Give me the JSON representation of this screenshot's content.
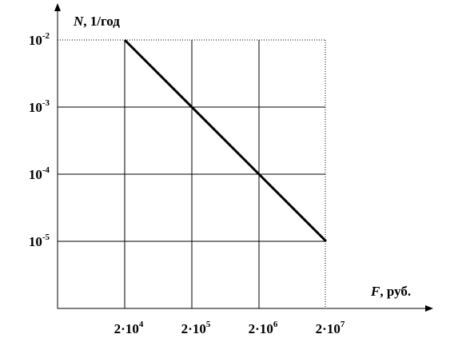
{
  "chart_data": {
    "type": "line",
    "xscale": "log",
    "yscale": "log",
    "xlabel_var": "F",
    "xlabel_unit": ",  руб.",
    "ylabel_var": "N",
    "ylabel_unit": ", 1/год",
    "x_ticks": [
      {
        "value": 20000,
        "mantissa": "2·10",
        "exp": "4"
      },
      {
        "value": 200000,
        "mantissa": "2·10",
        "exp": "5"
      },
      {
        "value": 2000000,
        "mantissa": "2·10",
        "exp": "6"
      },
      {
        "value": 20000000,
        "mantissa": "2·10",
        "exp": "7"
      }
    ],
    "y_ticks": [
      {
        "value": 0.01,
        "mantissa": "10",
        "exp": "-2"
      },
      {
        "value": 0.001,
        "mantissa": "10",
        "exp": "-3"
      },
      {
        "value": 0.0001,
        "mantissa": "10",
        "exp": "-4"
      },
      {
        "value": 1e-05,
        "mantissa": "10",
        "exp": "-5"
      }
    ],
    "series": [
      {
        "points": [
          {
            "x": 20000,
            "y": 0.01
          },
          {
            "x": 200000,
            "y": 0.001
          },
          {
            "x": 2000000,
            "y": 0.0001
          },
          {
            "x": 20000000,
            "y": 1e-05
          }
        ]
      }
    ],
    "grid": true,
    "line_color": "#000000"
  }
}
